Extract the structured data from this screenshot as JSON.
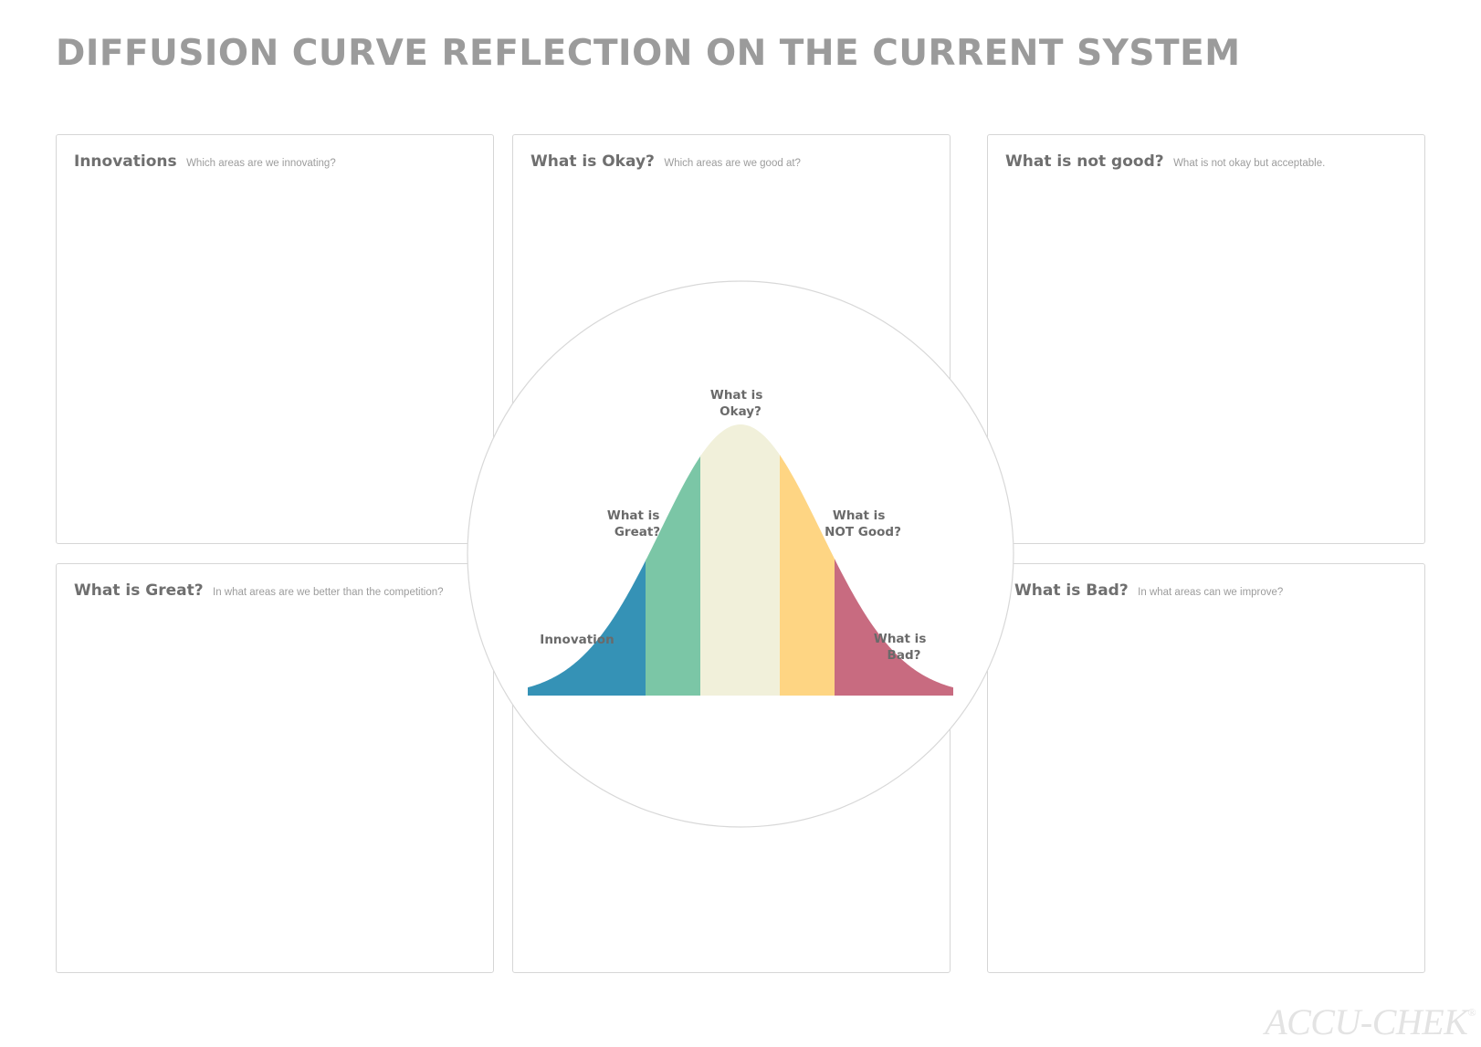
{
  "title": "DIFFUSION CURVE REFLECTION ON THE CURRENT SYSTEM",
  "panels": {
    "innovations": {
      "title": "Innovations",
      "subtitle": "Which areas are we innovating?"
    },
    "okay": {
      "title": "What is Okay?",
      "subtitle": "Which areas are we good at?"
    },
    "not_good": {
      "title": "What is not good?",
      "subtitle": "What is not okay but acceptable."
    },
    "great": {
      "title": "What is Great?",
      "subtitle": "In what areas are we better than the competition?"
    },
    "bad": {
      "title": "What is Bad?",
      "subtitle": "In what areas can we improve?"
    }
  },
  "curve": {
    "segments": [
      {
        "name": "innovation",
        "color": "#3592b6"
      },
      {
        "name": "great",
        "color": "#7bc6a6"
      },
      {
        "name": "okay",
        "color": "#f1f0da"
      },
      {
        "name": "not-good",
        "color": "#fed583"
      },
      {
        "name": "bad",
        "color": "#c86b80"
      }
    ],
    "labels": {
      "okay_line1": "What is",
      "okay_line2": "Okay?",
      "great_line1": "What is",
      "great_line2": "Great?",
      "not_good_line1": "What is",
      "not_good_line2": "NOT Good?",
      "innovation": "Innovation",
      "bad_line1": "What is",
      "bad_line2": "Bad?"
    }
  },
  "logo": {
    "text": "ACCU-CHEK",
    "mark": "®"
  }
}
